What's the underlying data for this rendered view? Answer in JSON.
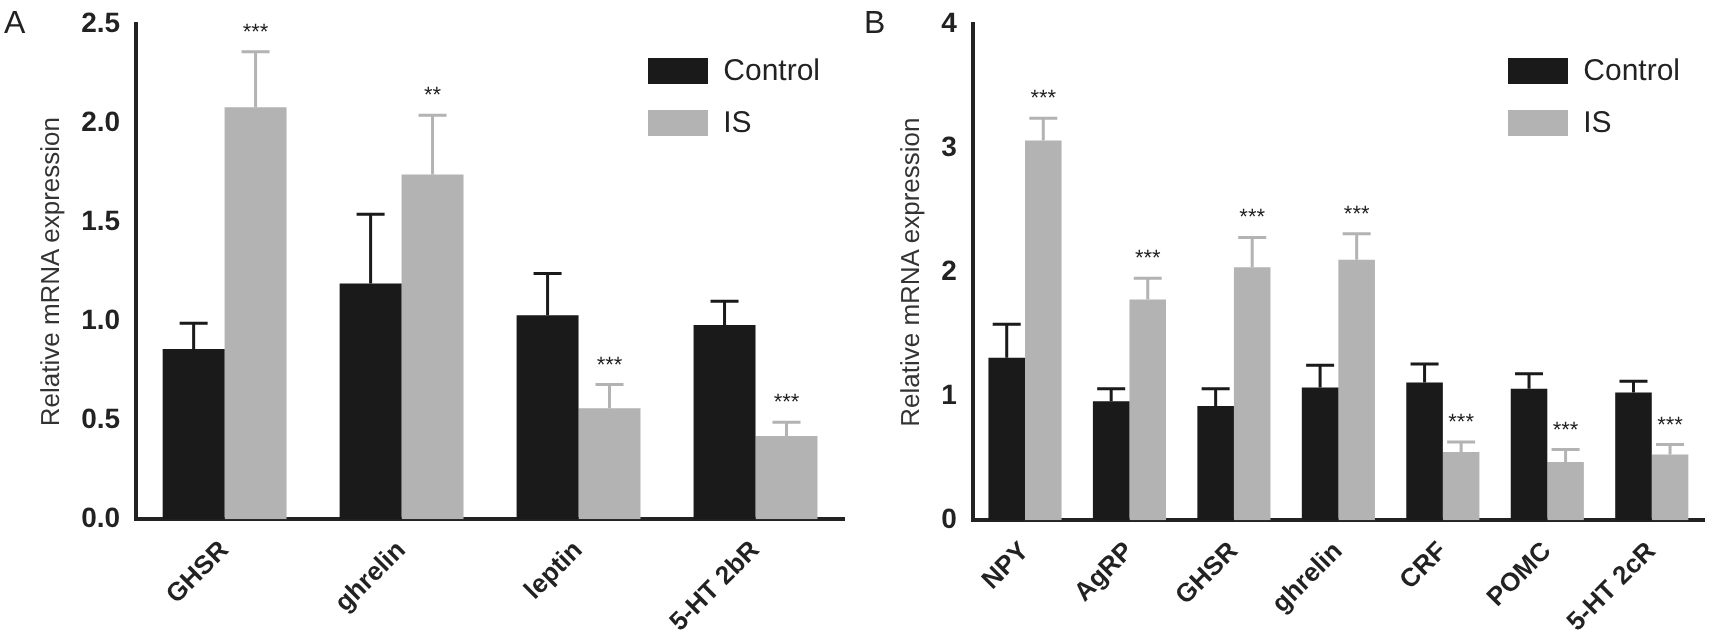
{
  "chart_data": [
    {
      "type": "bar",
      "ylabel": "Relative mRNA expression",
      "categories": [
        "GHSR",
        "ghrelin",
        "leptin",
        "5-HT 2bR"
      ],
      "series": [
        {
          "name": "Control",
          "color": "#1a1a1a",
          "values": [
            0.86,
            1.19,
            1.03,
            0.98
          ],
          "errors": [
            0.13,
            0.35,
            0.21,
            0.12
          ]
        },
        {
          "name": "IS",
          "color": "#b3b3b3",
          "values": [
            2.08,
            1.74,
            0.56,
            0.42
          ],
          "errors": [
            0.28,
            0.3,
            0.12,
            0.07
          ]
        }
      ],
      "ylim": [
        0,
        2.5
      ],
      "yticks": [
        {
          "value": 0,
          "label": "0.0"
        },
        {
          "value": 0.5,
          "label": "0.5"
        },
        {
          "value": 1,
          "label": "1.0"
        },
        {
          "value": 1.5,
          "label": "1.5"
        },
        {
          "value": 2,
          "label": "2.0"
        },
        {
          "value": 2.5,
          "label": "2.5"
        }
      ],
      "grid": false,
      "legend": "top right",
      "annotations": [
        "A",
        {
          "text": "***",
          "x": "GHSR",
          "y": 2.08
        },
        "**",
        {
          "text": "***",
          "x": "leptin",
          "y": 0.56
        },
        {
          "text": "***",
          "x": "5-HT 2bR",
          "y": 0.42
        }
      ]
    },
    {
      "type": "bar",
      "ylabel": "Relative mRNA expression",
      "categories": [
        "NPY",
        "AgRP",
        "GHSR",
        "ghrelin",
        "CRF",
        "POMC",
        "5-HT 2cR"
      ],
      "series": [
        {
          "name": "Control",
          "color": "#1a1a1a",
          "values": [
            1.31,
            0.96,
            0.92,
            1.07,
            1.11,
            1.06,
            1.03
          ],
          "errors": [
            0.27,
            0.1,
            0.14,
            0.18,
            0.15,
            0.12,
            0.09
          ]
        },
        {
          "name": "IS",
          "color": "#b3b3b3",
          "values": [
            3.06,
            1.78,
            2.04,
            2.1,
            0.55,
            0.47,
            0.53
          ],
          "errors": [
            0.18,
            0.17,
            0.24,
            0.21,
            0.08,
            0.1,
            0.08
          ]
        }
      ],
      "ylim": [
        0,
        4
      ],
      "yticks": [
        0,
        1,
        2,
        3,
        4
      ],
      "grid": false,
      "legend": "top right",
      "annotations": [
        "B",
        {
          "text": "***",
          "x": "NPY",
          "y": 3.06
        },
        {
          "text": "***",
          "x": "AgRP",
          "y": 1.78
        },
        {
          "text": "***",
          "x": "GHSR",
          "y": 2.04
        },
        {
          "text": "***",
          "x": "ghrelin",
          "y": 2.1
        },
        {
          "text": "***",
          "x": "CRF",
          "y": 0.55
        },
        {
          "text": "***",
          "x": "POMC",
          "y": 0.47
        },
        {
          "text": "***",
          "x": "5-HT 2cR",
          "y": 0.53
        }
      ]
    }
  ]
}
